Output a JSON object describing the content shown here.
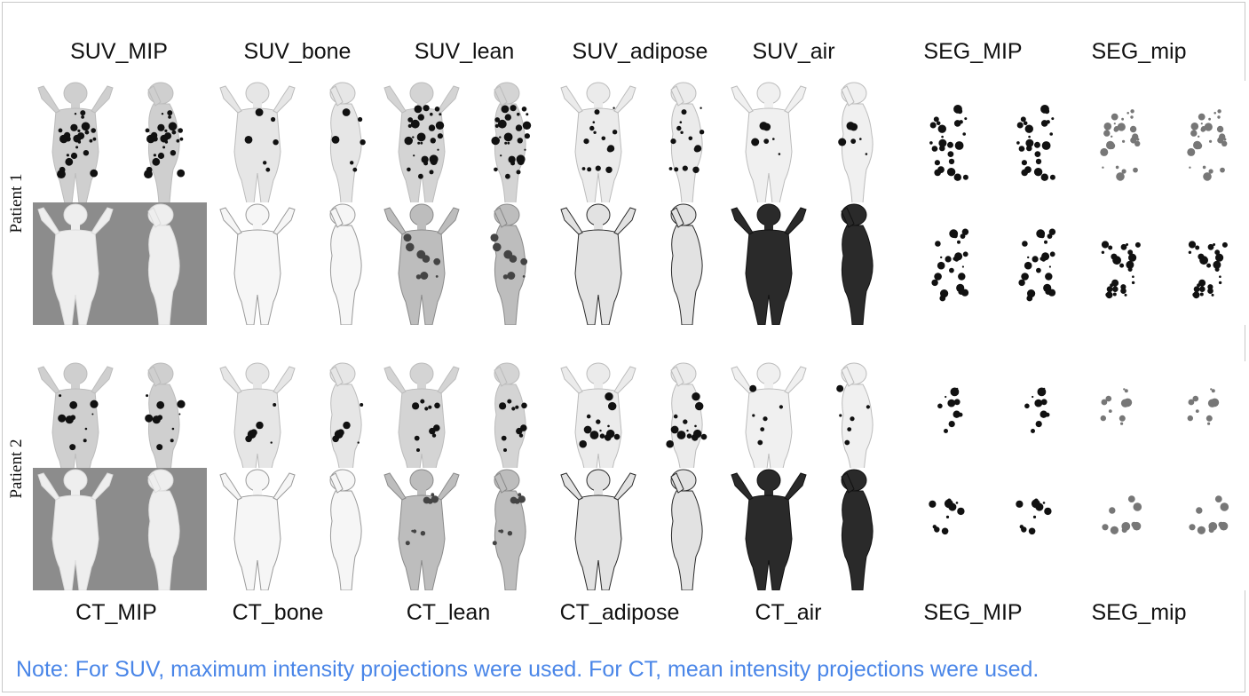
{
  "top_labels": [
    "SUV_MIP",
    "SUV_bone",
    "SUV_lean",
    "SUV_adipose",
    "SUV_air",
    "SEG_MIP",
    "SEG_mip"
  ],
  "bottom_labels": [
    "CT_MIP",
    "CT_bone",
    "CT_lean",
    "CT_adipose",
    "CT_air",
    "SEG_MIP",
    "SEG_mip"
  ],
  "patients": [
    "Patient 1",
    "Patient 2"
  ],
  "note": "Note: For SUV, maximum intensity projections were used. For CT, mean intensity projections were used."
}
